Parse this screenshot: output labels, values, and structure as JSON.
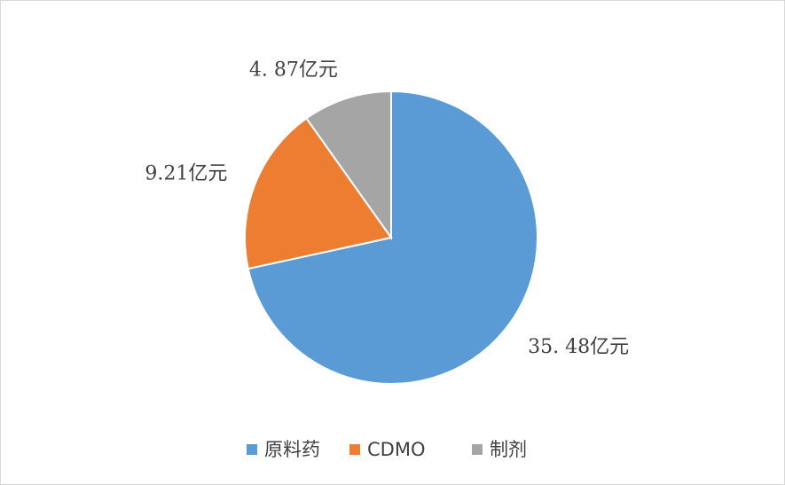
{
  "chart_data": {
    "type": "pie",
    "categories": [
      "原料药",
      "CDMO",
      "制剂"
    ],
    "values": [
      35.48,
      9.21,
      4.87
    ],
    "value_labels": [
      "35. 48亿元",
      "9.21亿元",
      "4. 87亿元"
    ],
    "colors": [
      "#5b9bd5",
      "#ed7d31",
      "#a5a5a5"
    ],
    "legend": "bottom"
  }
}
